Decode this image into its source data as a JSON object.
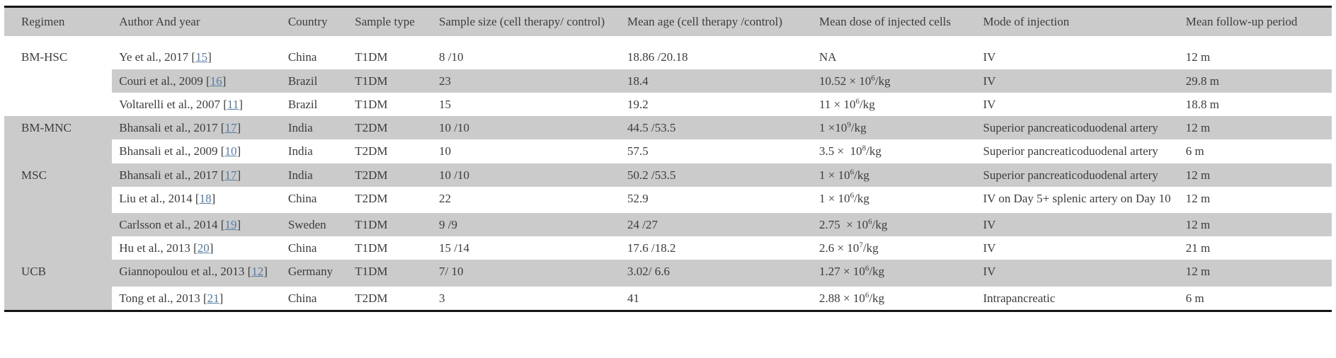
{
  "table": {
    "columns": [
      "Regimen",
      "Author And year",
      "Country",
      "Sample type",
      "Sample size (cell therapy/ control)",
      "Mean age (cell therapy /control)",
      "Mean dose of injected cells",
      "Mode of injection",
      "Mean follow-up period"
    ],
    "groups": [
      {
        "regimen": "BM-HSC",
        "rows": [
          {
            "author": "Ye et al., 2017",
            "ref": "15",
            "country": "China",
            "sample_type": "T1DM",
            "sample_size": "8 /10",
            "mean_age": "18.86 /20.18",
            "dose": [
              {
                "t": "NA"
              }
            ],
            "injection": "IV",
            "follow_up": "12 m",
            "shaded": false
          },
          {
            "author": "Couri et al., 2009",
            "ref": "16",
            "country": "Brazil",
            "sample_type": "T1DM",
            "sample_size": "23",
            "mean_age": "18.4",
            "dose": [
              {
                "t": "10.52 × 10"
              },
              {
                "sup": "6"
              },
              {
                "t": "/kg"
              }
            ],
            "injection": "IV",
            "follow_up": "29.8 m",
            "shaded": true
          },
          {
            "author": "Voltarelli et al., 2007",
            "ref": "11",
            "country": "Brazil",
            "sample_type": "T1DM",
            "sample_size": "15",
            "mean_age": "19.2",
            "dose": [
              {
                "t": "11 × 10"
              },
              {
                "sup": "6"
              },
              {
                "t": "/kg"
              }
            ],
            "injection": "IV",
            "follow_up": "18.8 m",
            "shaded": false
          }
        ]
      },
      {
        "regimen": "BM-MNC",
        "rows": [
          {
            "author": "Bhansali et al., 2017",
            "ref": "17",
            "country": "India",
            "sample_type": "T2DM",
            "sample_size": "10 /10",
            "mean_age": "44.5 /53.5",
            "dose": [
              {
                "t": "1 ×10"
              },
              {
                "sup": "9"
              },
              {
                "t": "/kg"
              }
            ],
            "injection": "Superior pancreaticoduodenal artery",
            "follow_up": "12 m",
            "shaded": true
          },
          {
            "author": "Bhansali et al., 2009",
            "ref": "10",
            "country": "India",
            "sample_type": "T2DM",
            "sample_size": "10",
            "mean_age": "57.5",
            "dose": [
              {
                "t": "3.5 ×  10"
              },
              {
                "sup": "8"
              },
              {
                "t": "/kg"
              }
            ],
            "injection": "Superior pancreaticoduodenal artery",
            "follow_up": "6 m",
            "shaded": false
          }
        ]
      },
      {
        "regimen": "MSC",
        "rows": [
          {
            "author": "Bhansali et al., 2017",
            "ref": "17",
            "country": "India",
            "sample_type": "T2DM",
            "sample_size": "10 /10",
            "mean_age": "50.2 /53.5",
            "dose": [
              {
                "t": "1 × 10"
              },
              {
                "sup": "6"
              },
              {
                "t": "/kg"
              }
            ],
            "injection": "Superior pancreaticoduodenal artery",
            "follow_up": "12 m",
            "shaded": true
          },
          {
            "author": "Liu et al., 2014",
            "ref": "18",
            "country": "China",
            "sample_type": "T2DM",
            "sample_size": "22",
            "mean_age": "52.9",
            "dose": [
              {
                "t": "1 × 10"
              },
              {
                "sup": "6"
              },
              {
                "t": "/kg"
              }
            ],
            "injection": "IV on Day 5+ splenic artery on Day 10",
            "follow_up": "12 m",
            "shaded": false,
            "tall": true
          },
          {
            "author": "Carlsson et al., 2014",
            "ref": "19",
            "country": "Sweden",
            "sample_type": "T1DM",
            "sample_size": "9 /9",
            "mean_age": "24 /27",
            "dose": [
              {
                "t": "2.75  × 10"
              },
              {
                "sup": "6"
              },
              {
                "t": "/kg"
              }
            ],
            "injection": "IV",
            "follow_up": "12 m",
            "shaded": true
          },
          {
            "author": "Hu et al., 2013",
            "ref": "20",
            "country": "China",
            "sample_type": "T1DM",
            "sample_size": "15 /14",
            "mean_age": "17.6 /18.2",
            "dose": [
              {
                "t": "2.6 × 10"
              },
              {
                "sup": "7"
              },
              {
                "t": "/kg"
              }
            ],
            "injection": "IV",
            "follow_up": "21 m",
            "shaded": false
          }
        ]
      },
      {
        "regimen": "UCB",
        "rows": [
          {
            "author": "Giannopoulou et al., 2013",
            "ref": "12",
            "country": "Germany",
            "sample_type": "T1DM",
            "sample_size": "7/ 10",
            "mean_age": "3.02/ 6.6",
            "dose": [
              {
                "t": "1.27 × 10"
              },
              {
                "sup": "6"
              },
              {
                "t": "/kg"
              }
            ],
            "injection": "IV",
            "follow_up": "12 m",
            "shaded": true,
            "tall": true
          },
          {
            "author": "Tong et al., 2013",
            "ref": "21",
            "country": "China",
            "sample_type": "T2DM",
            "sample_size": "3",
            "mean_age": "41",
            "dose": [
              {
                "t": "2.88 × 10"
              },
              {
                "sup": "6"
              },
              {
                "t": "/kg"
              }
            ],
            "injection": "Intrapancreatic",
            "follow_up": "6 m",
            "shaded": false
          }
        ]
      }
    ]
  },
  "colors": {
    "shaded_row": "#cbcbcb",
    "link": "#537aa2",
    "text": "#3c3c3c",
    "rule": "#141414"
  }
}
